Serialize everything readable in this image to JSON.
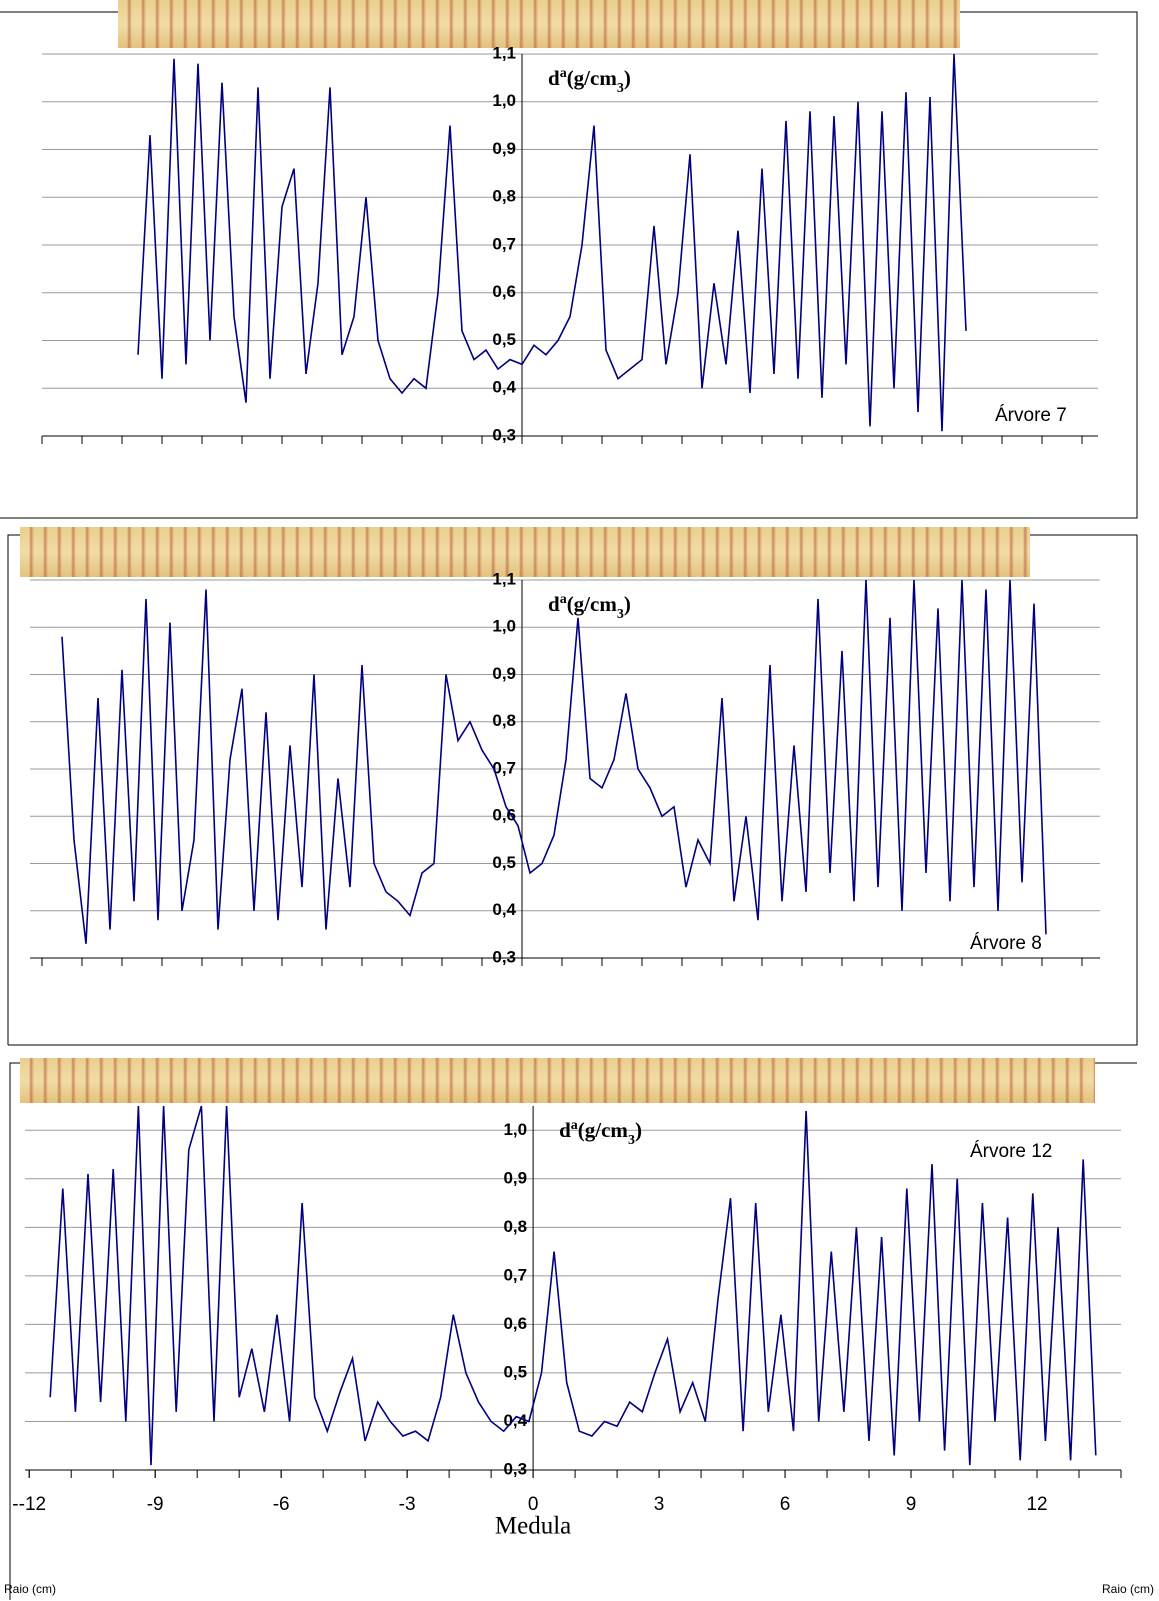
{
  "chart_data": [
    {
      "type": "line",
      "color": "#000080",
      "grid": true,
      "y_label_parts": [
        "d",
        "a",
        "(g/cm",
        "3",
        ")"
      ],
      "annotation": "Árvore 7",
      "xlim": [
        -12,
        14.4
      ],
      "ylim": [
        0.3,
        1.1
      ],
      "yticks": [
        {
          "value": 0.3,
          "label": "0,3"
        },
        {
          "value": 0.4,
          "label": "0,4"
        },
        {
          "value": 0.5,
          "label": "0,5"
        },
        {
          "value": 0.6,
          "label": "0,6"
        },
        {
          "value": 0.7,
          "label": "0,7"
        },
        {
          "value": 0.8,
          "label": "0,8"
        },
        {
          "value": 0.9,
          "label": "0,9"
        },
        {
          "value": 1.0,
          "label": "1,0"
        },
        {
          "value": 1.1,
          "label": "1,1"
        }
      ],
      "xminor_ticks": [
        -12,
        -11,
        -10,
        -9,
        -8,
        -7,
        -6,
        -5,
        -4,
        -3,
        -2,
        -1,
        0,
        1,
        2,
        3,
        4,
        5,
        6,
        7,
        8,
        9,
        10,
        11,
        12,
        13,
        14
      ],
      "x": [
        -9.6,
        -9.3,
        -9.0,
        -8.7,
        -8.4,
        -8.1,
        -7.8,
        -7.5,
        -7.2,
        -6.9,
        -6.6,
        -6.3,
        -6.0,
        -5.7,
        -5.4,
        -5.1,
        -4.8,
        -4.5,
        -4.2,
        -3.9,
        -3.6,
        -3.3,
        -3.0,
        -2.7,
        -2.4,
        -2.1,
        -1.8,
        -1.5,
        -1.2,
        -0.9,
        -0.6,
        -0.3,
        0,
        0.3,
        0.6,
        0.9,
        1.2,
        1.5,
        1.8,
        2.1,
        2.4,
        2.7,
        3.0,
        3.3,
        3.6,
        3.9,
        4.2,
        4.5,
        4.8,
        5.1,
        5.4,
        5.7,
        6.0,
        6.3,
        6.6,
        6.9,
        7.2,
        7.5,
        7.8,
        8.1,
        8.4,
        8.7,
        9.0,
        9.3,
        9.6,
        9.9,
        10.2,
        10.5,
        10.8,
        11.1
      ],
      "values": [
        0.47,
        0.93,
        0.42,
        1.09,
        0.45,
        1.08,
        0.5,
        1.04,
        0.55,
        0.37,
        1.03,
        0.42,
        0.78,
        0.86,
        0.43,
        0.62,
        1.03,
        0.47,
        0.55,
        0.8,
        0.5,
        0.42,
        0.39,
        0.42,
        0.4,
        0.6,
        0.95,
        0.52,
        0.46,
        0.48,
        0.44,
        0.46,
        0.45,
        0.49,
        0.47,
        0.5,
        0.55,
        0.7,
        0.95,
        0.48,
        0.42,
        0.44,
        0.46,
        0.74,
        0.45,
        0.6,
        0.89,
        0.4,
        0.62,
        0.45,
        0.73,
        0.39,
        0.86,
        0.43,
        0.96,
        0.42,
        0.98,
        0.38,
        0.97,
        0.45,
        1.0,
        0.32,
        0.98,
        0.4,
        1.02,
        0.35,
        1.01,
        0.31,
        1.1,
        0.52
      ]
    },
    {
      "type": "line",
      "color": "#000080",
      "grid": true,
      "y_label_parts": [
        "d",
        "a",
        "(g/cm",
        "3",
        ")"
      ],
      "annotation": "Árvore 8",
      "xlim": [
        -12.3,
        14.45
      ],
      "ylim": [
        0.3,
        1.1
      ],
      "yticks": [
        {
          "value": 0.3,
          "label": "0,3"
        },
        {
          "value": 0.4,
          "label": "0,4"
        },
        {
          "value": 0.5,
          "label": "0,5"
        },
        {
          "value": 0.6,
          "label": "0,6"
        },
        {
          "value": 0.7,
          "label": "0,7"
        },
        {
          "value": 0.8,
          "label": "0,8"
        },
        {
          "value": 0.9,
          "label": "0,9"
        },
        {
          "value": 1.0,
          "label": "1,0"
        },
        {
          "value": 1.1,
          "label": "1,1"
        }
      ],
      "xminor_ticks": [
        -12,
        -11,
        -10,
        -9,
        -8,
        -7,
        -6,
        -5,
        -4,
        -3,
        -2,
        -1,
        0,
        1,
        2,
        3,
        4,
        5,
        6,
        7,
        8,
        9,
        10,
        11,
        12,
        13,
        14
      ],
      "x": [
        -11.5,
        -11.2,
        -10.9,
        -10.6,
        -10.3,
        -10.0,
        -9.7,
        -9.4,
        -9.1,
        -8.8,
        -8.5,
        -8.2,
        -7.9,
        -7.6,
        -7.3,
        -7.0,
        -6.7,
        -6.4,
        -6.1,
        -5.8,
        -5.5,
        -5.2,
        -4.9,
        -4.6,
        -4.3,
        -4.0,
        -3.7,
        -3.4,
        -3.1,
        -2.8,
        -2.5,
        -2.2,
        -1.9,
        -1.6,
        -1.3,
        -1.0,
        -0.7,
        -0.4,
        -0.1,
        0.2,
        0.5,
        0.8,
        1.1,
        1.4,
        1.7,
        2.0,
        2.3,
        2.6,
        2.9,
        3.2,
        3.5,
        3.8,
        4.1,
        4.4,
        4.7,
        5.0,
        5.3,
        5.6,
        5.9,
        6.2,
        6.5,
        6.8,
        7.1,
        7.4,
        7.7,
        8.0,
        8.3,
        8.6,
        8.9,
        9.2,
        9.5,
        9.8,
        10.1,
        10.4,
        10.7,
        11.0,
        11.3,
        11.6,
        11.9,
        12.2,
        12.5,
        12.8,
        13.1
      ],
      "values": [
        0.98,
        0.55,
        0.33,
        0.85,
        0.36,
        0.91,
        0.42,
        1.06,
        0.38,
        1.01,
        0.4,
        0.55,
        1.08,
        0.36,
        0.72,
        0.87,
        0.4,
        0.82,
        0.38,
        0.75,
        0.45,
        0.9,
        0.36,
        0.68,
        0.45,
        0.92,
        0.5,
        0.44,
        0.42,
        0.39,
        0.48,
        0.5,
        0.9,
        0.76,
        0.8,
        0.74,
        0.7,
        0.62,
        0.58,
        0.48,
        0.5,
        0.56,
        0.72,
        1.02,
        0.68,
        0.66,
        0.72,
        0.86,
        0.7,
        0.66,
        0.6,
        0.62,
        0.45,
        0.55,
        0.5,
        0.85,
        0.42,
        0.6,
        0.38,
        0.92,
        0.42,
        0.75,
        0.44,
        1.06,
        0.48,
        0.95,
        0.42,
        1.1,
        0.45,
        1.02,
        0.4,
        1.1,
        0.48,
        1.04,
        0.42,
        1.1,
        0.45,
        1.08,
        0.4,
        1.1,
        0.46,
        1.05,
        0.35
      ]
    },
    {
      "type": "line",
      "color": "#000080",
      "grid": true,
      "y_label_parts": [
        "d",
        "a",
        "(g/cm",
        "3",
        ")"
      ],
      "annotation": "Árvore 12",
      "x_label": "Raio (cm)",
      "center_label": "Medula",
      "xlim": [
        -12.1,
        14
      ],
      "ylim": [
        0.3,
        1.05
      ],
      "yticks": [
        {
          "value": 0.3,
          "label": "0,3"
        },
        {
          "value": 0.4,
          "label": "0,4"
        },
        {
          "value": 0.5,
          "label": "0,5"
        },
        {
          "value": 0.6,
          "label": "0,6"
        },
        {
          "value": 0.7,
          "label": "0,7"
        },
        {
          "value": 0.8,
          "label": "0,8"
        },
        {
          "value": 0.9,
          "label": "0,9"
        },
        {
          "value": 1.0,
          "label": "1,0"
        }
      ],
      "xticks": [
        {
          "value": -12,
          "label": "--12"
        },
        -9,
        -6,
        -3,
        0,
        3,
        6,
        9,
        12
      ],
      "xminor_ticks": [
        -12,
        -11,
        -10,
        -9,
        -8,
        -7,
        -6,
        -5,
        -4,
        -3,
        -2,
        -1,
        0,
        1,
        2,
        3,
        4,
        5,
        6,
        7,
        8,
        9,
        10,
        11,
        12,
        13,
        14
      ],
      "x": [
        -11.5,
        -11.2,
        -10.9,
        -10.6,
        -10.3,
        -10.0,
        -9.7,
        -9.4,
        -9.1,
        -8.8,
        -8.5,
        -8.2,
        -7.9,
        -7.6,
        -7.3,
        -7.0,
        -6.7,
        -6.4,
        -6.1,
        -5.8,
        -5.5,
        -5.2,
        -4.9,
        -4.6,
        -4.3,
        -4.0,
        -3.7,
        -3.4,
        -3.1,
        -2.8,
        -2.5,
        -2.2,
        -1.9,
        -1.6,
        -1.3,
        -1.0,
        -0.7,
        -0.4,
        -0.1,
        0.2,
        0.5,
        0.8,
        1.1,
        1.4,
        1.7,
        2.0,
        2.3,
        2.6,
        2.9,
        3.2,
        3.5,
        3.8,
        4.1,
        4.4,
        4.7,
        5.0,
        5.3,
        5.6,
        5.9,
        6.2,
        6.5,
        6.8,
        7.1,
        7.4,
        7.7,
        8.0,
        8.3,
        8.6,
        8.9,
        9.2,
        9.5,
        9.8,
        10.1,
        10.4,
        10.7,
        11.0,
        11.3,
        11.6,
        11.9,
        12.2,
        12.5,
        12.8,
        13.1,
        13.4
      ],
      "values": [
        0.45,
        0.88,
        0.42,
        0.91,
        0.44,
        0.92,
        0.4,
        1.05,
        0.31,
        1.05,
        0.42,
        0.96,
        1.05,
        0.4,
        1.05,
        0.45,
        0.55,
        0.42,
        0.62,
        0.4,
        0.85,
        0.45,
        0.38,
        0.46,
        0.53,
        0.36,
        0.44,
        0.4,
        0.37,
        0.38,
        0.36,
        0.45,
        0.62,
        0.5,
        0.44,
        0.4,
        0.38,
        0.41,
        0.4,
        0.5,
        0.75,
        0.48,
        0.38,
        0.37,
        0.4,
        0.39,
        0.44,
        0.42,
        0.5,
        0.57,
        0.42,
        0.48,
        0.4,
        0.65,
        0.86,
        0.38,
        0.85,
        0.42,
        0.62,
        0.38,
        1.04,
        0.4,
        0.75,
        0.42,
        0.8,
        0.36,
        0.78,
        0.33,
        0.88,
        0.4,
        0.93,
        0.34,
        0.9,
        0.31,
        0.85,
        0.4,
        0.82,
        0.32,
        0.87,
        0.36,
        0.8,
        0.32,
        0.94,
        0.33
      ]
    }
  ]
}
